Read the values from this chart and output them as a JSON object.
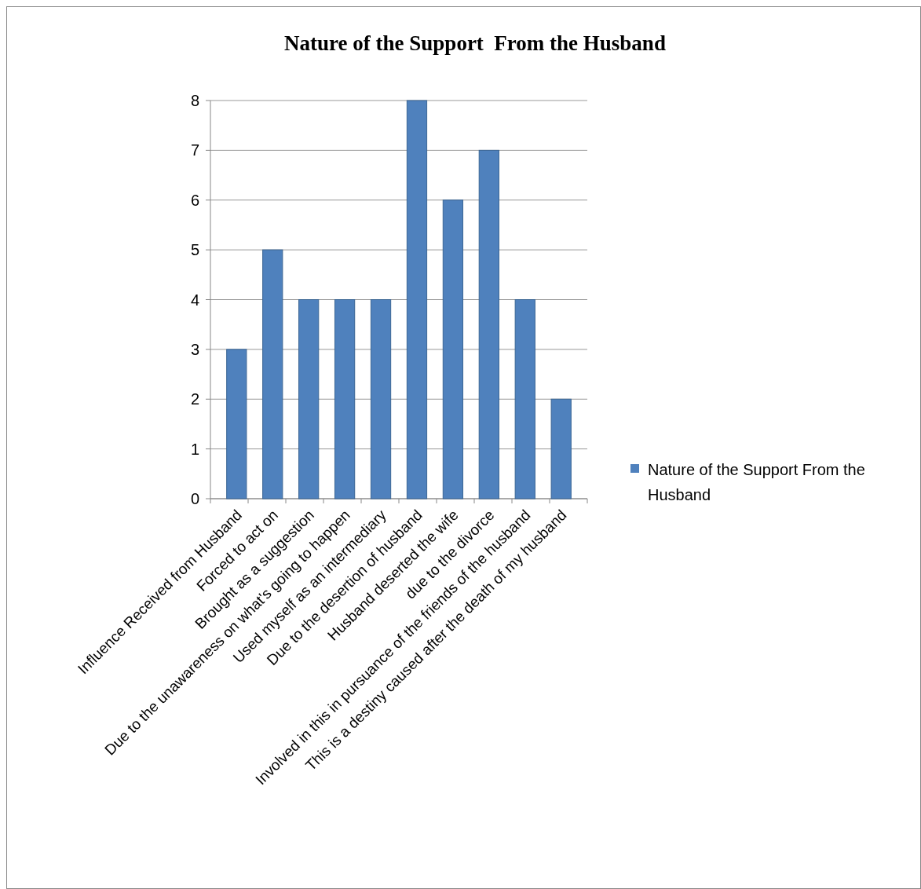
{
  "chart_data": {
    "type": "bar",
    "title": "Nature of the Support  From the Husband",
    "categories": [
      "Influence Received from Husband",
      "Forced to act on",
      "Brought as a suggestion",
      "Due to the unawareness on what's going to happen",
      "Used myself as an intermediary",
      "Due to the desertion of husband",
      "Husband deserted the wife",
      "due to the divorce",
      "Involved in this in pursuance of the friends of the husband",
      "This is a destiny caused after the death of my husband"
    ],
    "series": [
      {
        "name": "Nature of the Support From the Husband",
        "color": "#4f81bd",
        "values": [
          3,
          5,
          4,
          4,
          4,
          8,
          6,
          7,
          4,
          2
        ]
      }
    ],
    "ylim": [
      0,
      8
    ],
    "yticks": [
      0,
      1,
      2,
      3,
      4,
      5,
      6,
      7,
      8
    ],
    "grid": "y",
    "legend": "right"
  }
}
